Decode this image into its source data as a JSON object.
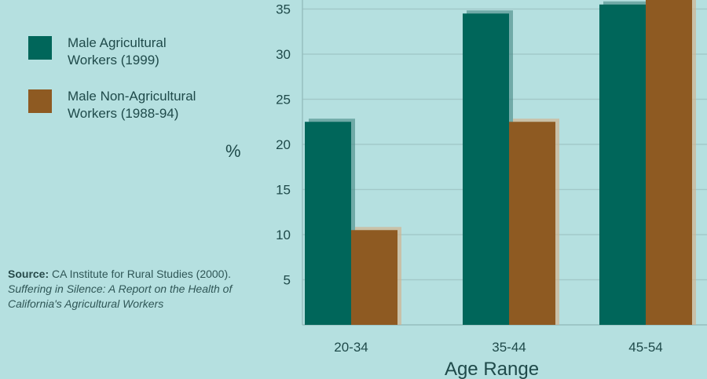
{
  "legend": [
    {
      "label": "Male Agricultural Workers (1999)",
      "color": "#00665a"
    },
    {
      "label": "Male Non-Agricultural Workers (1988-94)",
      "color": "#8e5a22"
    }
  ],
  "source": {
    "label": "Source:",
    "text": "CA Institute for Rural Studies (2000).",
    "title": "Suffering in Silence: A Report on the Health of California's Agricultural Workers"
  },
  "chart_data": {
    "type": "bar",
    "categories": [
      "20-34",
      "35-44",
      "45-54"
    ],
    "series": [
      {
        "name": "Male Agricultural Workers (1999)",
        "values": [
          22.5,
          34.5,
          35.5
        ],
        "color": "#00665a"
      },
      {
        "name": "Male Non-Agricultural Workers (1988-94)",
        "values": [
          10.5,
          22.5,
          36
        ],
        "color": "#8e5a22"
      }
    ],
    "ylabel": "%",
    "xlabel": "Age Range",
    "yticks": [
      5,
      10,
      15,
      20,
      25,
      30,
      35
    ],
    "ylim": [
      0,
      36
    ],
    "grid": true
  }
}
